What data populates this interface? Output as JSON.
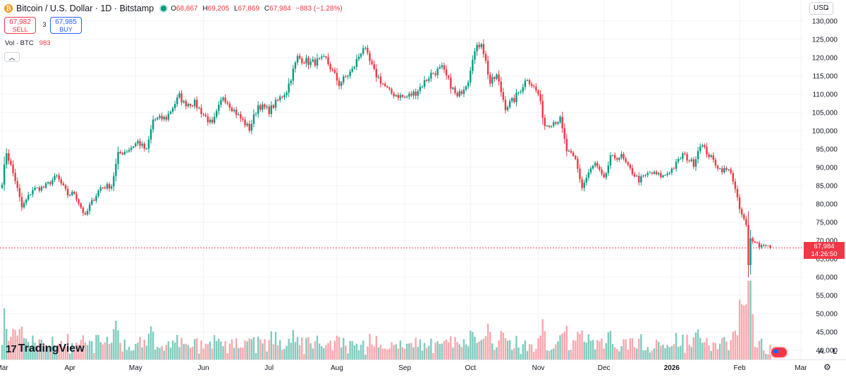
{
  "header": {
    "symbol_icon": "bitcoin-icon",
    "title": "Bitcoin / U.S. Dollar · 1D · Bitstamp",
    "ohlc": [
      {
        "label": "O",
        "value": "68,867"
      },
      {
        "label": "H",
        "value": "69,205"
      },
      {
        "label": "L",
        "value": "67,869"
      },
      {
        "label": "C",
        "value": "67,984"
      }
    ],
    "change": "−883 (−1.28%)"
  },
  "trade": {
    "sell_price": "67,982",
    "sell_label": "SELL",
    "spread": "3",
    "buy_price": "67,985",
    "buy_label": "BUY"
  },
  "volume": {
    "label": "Vol · BTC",
    "value": "983"
  },
  "collapse_icon": "chevron-up-icon",
  "currency": {
    "label": "USD",
    "icon": "chevron-down-icon"
  },
  "brand": {
    "name": "TradingView",
    "mark": "TV-logo-icon"
  },
  "last_price": {
    "price": "67,984",
    "countdown": "14:26:50"
  },
  "scale_buttons": {
    "auto": "A",
    "log": "L"
  },
  "settings_icon": "gear-icon",
  "colors": {
    "up": "#089981",
    "down": "#f23645",
    "up_vol": "#7fcbbd",
    "down_vol": "#f8a7ae",
    "grid": "#f0f3fa",
    "last_line": "#f23645"
  },
  "chart_data": {
    "type": "candlestick",
    "title": "Bitcoin / U.S. Dollar · 1D · Bitstamp",
    "ylim": [
      37500,
      131500
    ],
    "y_ticks": [
      40000,
      45000,
      50000,
      55000,
      60000,
      65000,
      70000,
      75000,
      80000,
      85000,
      90000,
      95000,
      100000,
      105000,
      110000,
      115000,
      120000,
      125000,
      130000
    ],
    "x_ticks": [
      {
        "label": "Mar",
        "date": "2025-03-01"
      },
      {
        "label": "Apr",
        "date": "2025-04-01"
      },
      {
        "label": "May",
        "date": "2025-05-01"
      },
      {
        "label": "Jun",
        "date": "2025-06-01"
      },
      {
        "label": "Jul",
        "date": "2025-07-01"
      },
      {
        "label": "Aug",
        "date": "2025-08-01"
      },
      {
        "label": "Sep",
        "date": "2025-09-01"
      },
      {
        "label": "Oct",
        "date": "2025-10-01"
      },
      {
        "label": "Nov",
        "date": "2025-11-01"
      },
      {
        "label": "Dec",
        "date": "2025-12-01"
      },
      {
        "label": "2026",
        "date": "2026-01-01",
        "bold": true
      },
      {
        "label": "Feb",
        "date": "2026-02-01"
      },
      {
        "label": "Mar",
        "date": "2026-03-01"
      }
    ],
    "grid": true,
    "last_value": 67984,
    "close_series": [
      {
        "date": "2025-03-01",
        "close": 86000
      },
      {
        "date": "2025-03-03",
        "close": 94200
      },
      {
        "date": "2025-03-07",
        "close": 86500
      },
      {
        "date": "2025-03-10",
        "close": 79000
      },
      {
        "date": "2025-03-15",
        "close": 84000
      },
      {
        "date": "2025-03-20",
        "close": 84500
      },
      {
        "date": "2025-03-26",
        "close": 87500
      },
      {
        "date": "2025-03-31",
        "close": 82500
      },
      {
        "date": "2025-04-03",
        "close": 83000
      },
      {
        "date": "2025-04-08",
        "close": 76500
      },
      {
        "date": "2025-04-10",
        "close": 79500
      },
      {
        "date": "2025-04-15",
        "close": 84500
      },
      {
        "date": "2025-04-20",
        "close": 85000
      },
      {
        "date": "2025-04-23",
        "close": 93500
      },
      {
        "date": "2025-04-28",
        "close": 95000
      },
      {
        "date": "2025-05-02",
        "close": 97000
      },
      {
        "date": "2025-05-06",
        "close": 94500
      },
      {
        "date": "2025-05-09",
        "close": 103000
      },
      {
        "date": "2025-05-15",
        "close": 103500
      },
      {
        "date": "2025-05-21",
        "close": 109500
      },
      {
        "date": "2025-05-23",
        "close": 107500
      },
      {
        "date": "2025-05-28",
        "close": 107500
      },
      {
        "date": "2025-06-05",
        "close": 101500
      },
      {
        "date": "2025-06-10",
        "close": 109500
      },
      {
        "date": "2025-06-15",
        "close": 105500
      },
      {
        "date": "2025-06-22",
        "close": 100500
      },
      {
        "date": "2025-06-26",
        "close": 107000
      },
      {
        "date": "2025-07-01",
        "close": 105500
      },
      {
        "date": "2025-07-09",
        "close": 111000
      },
      {
        "date": "2025-07-14",
        "close": 120000
      },
      {
        "date": "2025-07-20",
        "close": 118500
      },
      {
        "date": "2025-07-27",
        "close": 119500
      },
      {
        "date": "2025-08-02",
        "close": 112800
      },
      {
        "date": "2025-08-08",
        "close": 116500
      },
      {
        "date": "2025-08-13",
        "close": 123000
      },
      {
        "date": "2025-08-18",
        "close": 116000
      },
      {
        "date": "2025-08-25",
        "close": 110500
      },
      {
        "date": "2025-09-01",
        "close": 109000
      },
      {
        "date": "2025-09-06",
        "close": 110500
      },
      {
        "date": "2025-09-13",
        "close": 115500
      },
      {
        "date": "2025-09-18",
        "close": 117000
      },
      {
        "date": "2025-09-25",
        "close": 109000
      },
      {
        "date": "2025-09-30",
        "close": 114000
      },
      {
        "date": "2025-10-02",
        "close": 120500
      },
      {
        "date": "2025-10-06",
        "close": 124500
      },
      {
        "date": "2025-10-10",
        "close": 113000
      },
      {
        "date": "2025-10-13",
        "close": 115000
      },
      {
        "date": "2025-10-17",
        "close": 106500
      },
      {
        "date": "2025-10-21",
        "close": 108500
      },
      {
        "date": "2025-10-27",
        "close": 114500
      },
      {
        "date": "2025-11-01",
        "close": 110000
      },
      {
        "date": "2025-11-04",
        "close": 101500
      },
      {
        "date": "2025-11-08",
        "close": 102500
      },
      {
        "date": "2025-11-11",
        "close": 103000
      },
      {
        "date": "2025-11-14",
        "close": 94500
      },
      {
        "date": "2025-11-18",
        "close": 92000
      },
      {
        "date": "2025-11-21",
        "close": 84500
      },
      {
        "date": "2025-11-24",
        "close": 88500
      },
      {
        "date": "2025-11-27",
        "close": 91000
      },
      {
        "date": "2025-12-01",
        "close": 86500
      },
      {
        "date": "2025-12-04",
        "close": 92500
      },
      {
        "date": "2025-12-09",
        "close": 93000
      },
      {
        "date": "2025-12-12",
        "close": 90000
      },
      {
        "date": "2025-12-17",
        "close": 86500
      },
      {
        "date": "2025-12-22",
        "close": 88500
      },
      {
        "date": "2025-12-28",
        "close": 87500
      },
      {
        "date": "2026-01-02",
        "close": 90000
      },
      {
        "date": "2026-01-06",
        "close": 93500
      },
      {
        "date": "2026-01-11",
        "close": 91000
      },
      {
        "date": "2026-01-14",
        "close": 96500
      },
      {
        "date": "2026-01-19",
        "close": 92500
      },
      {
        "date": "2026-01-23",
        "close": 89500
      },
      {
        "date": "2026-01-28",
        "close": 89000
      },
      {
        "date": "2026-02-01",
        "close": 78500
      },
      {
        "date": "2026-02-04",
        "close": 74000
      },
      {
        "date": "2026-02-05",
        "close": 63000
      },
      {
        "date": "2026-02-06",
        "close": 70500
      },
      {
        "date": "2026-02-08",
        "close": 70000
      },
      {
        "date": "2026-02-10",
        "close": 68500
      },
      {
        "date": "2026-02-13",
        "close": 69000
      },
      {
        "date": "2026-02-15",
        "close": 67984
      }
    ]
  }
}
